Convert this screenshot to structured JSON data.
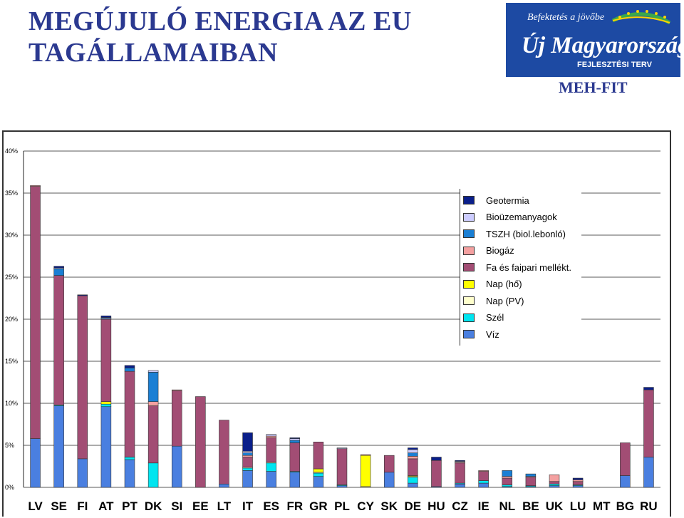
{
  "header": {
    "title_line1": "MEGÚJULÓ ENERGIA AZ EU",
    "title_line2": "TAGÁLLAMAIBAN",
    "logo_tagline": "Befektetés a jövőbe",
    "logo_name": "Új Magyarország",
    "logo_subtitle": "FEJLESZTÉSI TERV",
    "org": "MEH-FIT"
  },
  "colors": {
    "title": "#2b3990",
    "logo_bg": "#1d4aa3"
  },
  "chart_data": {
    "type": "bar",
    "stacked": true,
    "y_ticks": [
      "0%",
      "5%",
      "10%",
      "15%",
      "20%",
      "25%",
      "30%",
      "35%",
      "40%"
    ],
    "ylim": [
      0,
      40
    ],
    "categories": [
      "LV",
      "SE",
      "FI",
      "AT",
      "PT",
      "DK",
      "SI",
      "EE",
      "LT",
      "IT",
      "ES",
      "FR",
      "GR",
      "PL",
      "CY",
      "SK",
      "DE",
      "HU",
      "CZ",
      "IE",
      "NL",
      "BE",
      "UK",
      "LU",
      "MT",
      "BG",
      "RU"
    ],
    "legend_position": "top-right",
    "series": [
      {
        "name": "Víz",
        "color": "#4a7fe0",
        "values": [
          5.8,
          9.7,
          3.4,
          9.6,
          3.3,
          0,
          4.9,
          0,
          0.4,
          2.0,
          1.9,
          1.8,
          1.3,
          0.2,
          0,
          1.8,
          0.5,
          0.1,
          0.4,
          0.5,
          0.1,
          0.1,
          0.2,
          0.2,
          0,
          1.4,
          3.6
        ]
      },
      {
        "name": "Szél",
        "color": "#00e5f0",
        "values": [
          0,
          0.1,
          0,
          0.3,
          0.3,
          2.9,
          0,
          0,
          0,
          0.3,
          1.0,
          0.1,
          0.4,
          0.1,
          0,
          0,
          0.7,
          0,
          0.1,
          0.3,
          0.2,
          0.1,
          0.2,
          0.1,
          0,
          0,
          0
        ]
      },
      {
        "name": "Nap (PV)",
        "color": "#ffffcc",
        "values": [
          0,
          0,
          0,
          0,
          0,
          0,
          0,
          0,
          0,
          0.1,
          0.1,
          0,
          0.1,
          0,
          0.1,
          0,
          0.1,
          0,
          0,
          0,
          0,
          0,
          0,
          0,
          0,
          0,
          0
        ]
      },
      {
        "name": "Nap (hő)",
        "color": "#ffff00",
        "values": [
          0,
          0,
          0,
          0.3,
          0,
          0,
          0,
          0,
          0,
          0,
          0,
          0,
          0.4,
          0,
          3.7,
          0,
          0.1,
          0,
          0,
          0,
          0,
          0,
          0,
          0,
          0,
          0,
          0
        ]
      },
      {
        "name": "Fa és faipari mellékt.",
        "color": "#a24d74",
        "values": [
          30.0,
          15.4,
          19.4,
          9.8,
          10.2,
          6.8,
          6.6,
          10.8,
          7.6,
          1.2,
          2.9,
          3.4,
          3.2,
          4.3,
          0,
          2.0,
          2.0,
          3.1,
          2.4,
          1.1,
          0.8,
          1.0,
          0.3,
          0.4,
          0,
          3.9,
          8.0
        ]
      },
      {
        "name": "Biogáz",
        "color": "#f4a0a0",
        "values": [
          0.1,
          0,
          0,
          0,
          0,
          0.5,
          0.1,
          0,
          0,
          0.2,
          0.2,
          0,
          0,
          0,
          0.1,
          0,
          0.3,
          0,
          0.1,
          0.1,
          0.2,
          0.1,
          0.8,
          0.2,
          0,
          0,
          0
        ]
      },
      {
        "name": "TSZH (biol.lebonló)",
        "color": "#1a7fd4",
        "values": [
          0,
          0.8,
          0,
          0.1,
          0.4,
          3.5,
          0,
          0,
          0,
          0.3,
          0,
          0.3,
          0,
          0,
          0,
          0,
          0.4,
          0,
          0,
          0,
          0.7,
          0.3,
          0,
          0,
          0,
          0,
          0
        ]
      },
      {
        "name": "Bioüzemanyagok",
        "color": "#ccccff",
        "values": [
          0,
          0.1,
          0,
          0.1,
          0,
          0.2,
          0,
          0,
          0,
          0.2,
          0.2,
          0.2,
          0,
          0.1,
          0,
          0,
          0.4,
          0,
          0.1,
          0,
          0,
          0,
          0,
          0,
          0,
          0,
          0
        ]
      },
      {
        "name": "Geotermia",
        "color": "#0a1f8a",
        "values": [
          0,
          0.2,
          0.1,
          0.2,
          0.3,
          0,
          0,
          0,
          0,
          2.2,
          0,
          0.1,
          0,
          0,
          0,
          0,
          0.2,
          0.4,
          0.1,
          0,
          0,
          0,
          0,
          0.2,
          0,
          0,
          0.3
        ]
      }
    ]
  }
}
